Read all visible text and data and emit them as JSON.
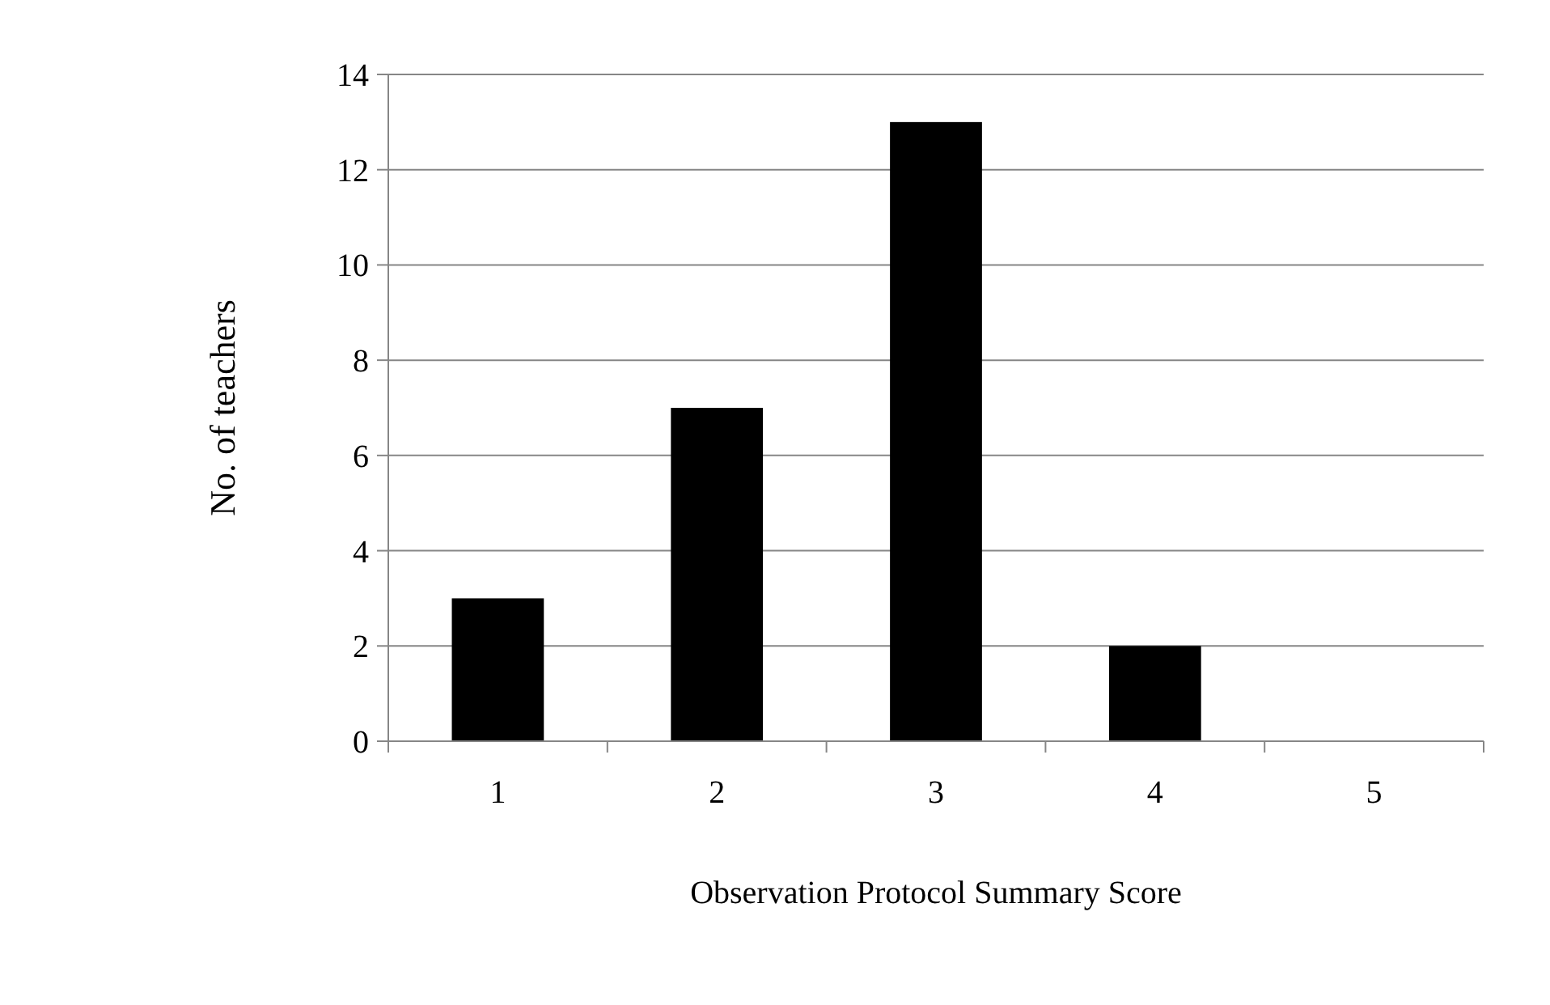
{
  "chart_data": {
    "type": "bar",
    "xlabel": "Observation Protocol Summary Score",
    "ylabel": "No. of teachers",
    "categories": [
      "1",
      "2",
      "3",
      "4",
      "5"
    ],
    "values": [
      3,
      7,
      13,
      2,
      0
    ],
    "color": "#000000",
    "ylim": [
      0,
      14
    ],
    "yticks": [
      0,
      2,
      4,
      6,
      8,
      10,
      12,
      14
    ],
    "grid": "y"
  }
}
